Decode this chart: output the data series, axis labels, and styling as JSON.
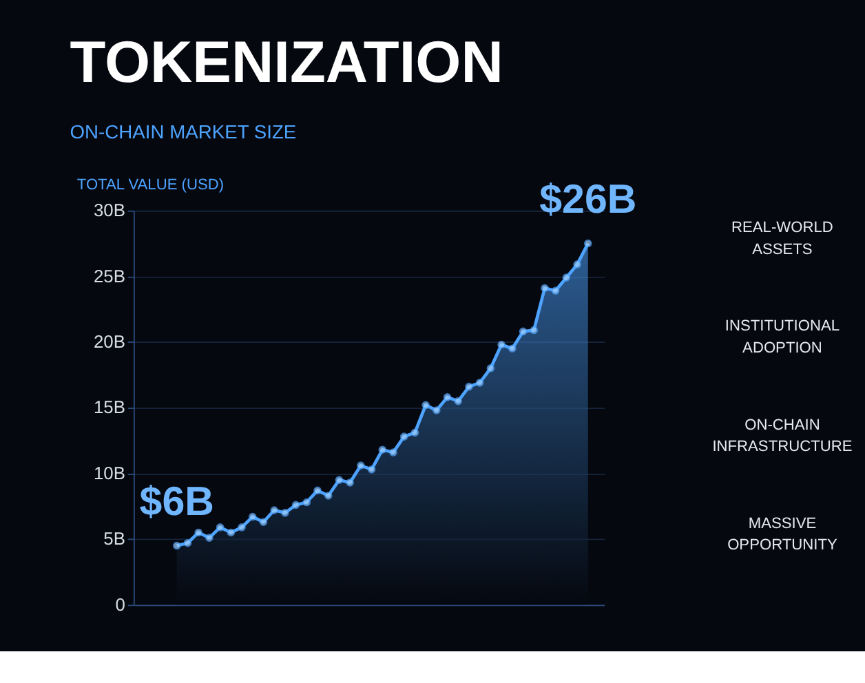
{
  "chart_data": {
    "type": "area",
    "title": "TOKENIZATION",
    "subtitle": "ON-CHAIN MARKET SIZE",
    "ylabel": "TOTAL VALUE (USD)",
    "categories": [
      null,
      null,
      null,
      null,
      null,
      null,
      null,
      null,
      null,
      null,
      null,
      null,
      null,
      null,
      null,
      null,
      null,
      null,
      null,
      null,
      null,
      null,
      null,
      null,
      null,
      null,
      null,
      null,
      null,
      null,
      null,
      null,
      null,
      null,
      null,
      null,
      null,
      null,
      null
    ],
    "series": [
      {
        "color": "#4da3ff",
        "values": [
          4.5,
          4.7,
          5.5,
          5.1,
          5.9,
          5.5,
          5.9,
          6.7,
          6.3,
          7.2,
          7.0,
          7.6,
          7.8,
          8.7,
          8.3,
          9.5,
          9.3,
          10.6,
          10.3,
          11.8,
          11.6,
          12.8,
          13.1,
          15.2,
          14.8,
          15.8,
          15.5,
          16.6,
          16.9,
          18.0,
          19.8,
          19.5,
          20.8,
          20.9,
          24.1,
          23.9,
          24.9,
          25.9,
          27.5
        ]
      }
    ],
    "ylim": [
      0,
      30
    ],
    "yticks": [
      0,
      {
        "value": 5,
        "label": "5B"
      },
      {
        "value": 10,
        "label": "10B"
      },
      {
        "value": 15,
        "label": "15B"
      },
      {
        "value": 20,
        "label": "20B"
      },
      {
        "value": 25,
        "label": "25B"
      },
      {
        "value": 30,
        "label": "30B"
      }
    ],
    "grid": "y",
    "marker": "circle",
    "line_style": "solid",
    "tick_labels": "y",
    "annotations": [
      {
        "text": "$6B",
        "y": 4.5
      },
      {
        "text": "$26B",
        "y": 27.5
      },
      "REAL-WORLD\nASSETS",
      "INSTITUTIONAL\nADOPTION",
      "ON-CHAIN\nINFRASTRUCTURE",
      "MASSIVE\nOPPORTUNITY"
    ]
  }
}
